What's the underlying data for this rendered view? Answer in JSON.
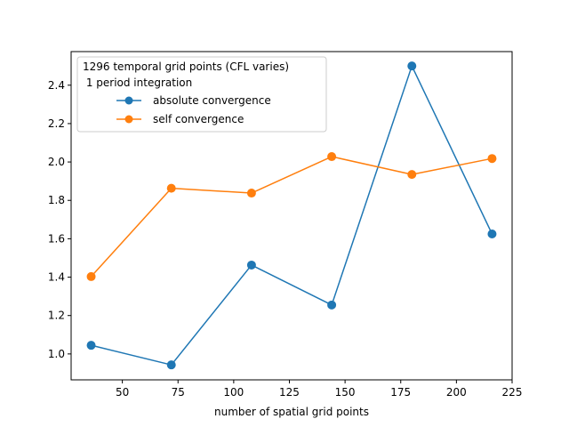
{
  "chart_data": {
    "type": "line",
    "title": "",
    "xlabel": "number of spatial grid points",
    "ylabel": "",
    "xlim": [
      27,
      225
    ],
    "ylim": [
      0.865,
      2.575
    ],
    "xticks": [
      50,
      75,
      100,
      125,
      150,
      175,
      200,
      225
    ],
    "yticks": [
      1.0,
      1.2,
      1.4,
      1.6,
      1.8,
      2.0,
      2.2,
      2.4
    ],
    "grid": false,
    "legend": {
      "placement": "top-left",
      "title_lines": [
        "1296 temporal grid points (CFL varies)",
        " 1 period integration"
      ]
    },
    "series": [
      {
        "name": "absolute convergence",
        "color": "#1f77b4",
        "marker": "circle",
        "x": [
          36,
          72,
          108,
          144,
          180,
          216
        ],
        "y": [
          1.045,
          0.943,
          1.463,
          1.255,
          2.5,
          1.625
        ]
      },
      {
        "name": "self convergence",
        "color": "#ff7f0e",
        "marker": "circle",
        "x": [
          36,
          72,
          108,
          144,
          180,
          216
        ],
        "y": [
          1.403,
          1.863,
          1.838,
          2.028,
          1.935,
          2.018
        ]
      }
    ]
  }
}
